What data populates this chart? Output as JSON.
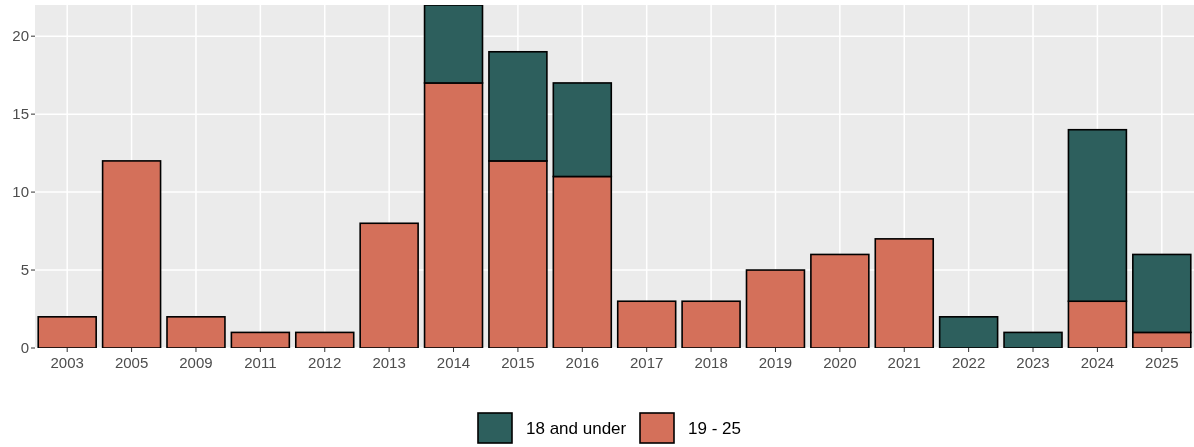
{
  "chart_data": {
    "type": "bar",
    "stacked": true,
    "categories": [
      "2003",
      "2005",
      "2009",
      "2011",
      "2012",
      "2013",
      "2014",
      "2015",
      "2016",
      "2017",
      "2018",
      "2019",
      "2020",
      "2021",
      "2022",
      "2023",
      "2024",
      "2025"
    ],
    "series": [
      {
        "name": "19 - 25",
        "color": "#d4705a",
        "values": [
          2,
          12,
          2,
          1,
          1,
          8,
          17,
          12,
          11,
          3,
          3,
          5,
          6,
          7,
          0,
          0,
          3,
          1
        ]
      },
      {
        "name": "18 and under",
        "color": "#2d5f5d",
        "values": [
          0,
          0,
          0,
          0,
          0,
          0,
          5,
          7,
          6,
          0,
          0,
          0,
          0,
          0,
          2,
          1,
          11,
          5
        ]
      }
    ],
    "ylim": [
      0,
      22
    ],
    "yticks": [
      0,
      5,
      10,
      15,
      20
    ],
    "grid": true,
    "legend": "bottom"
  }
}
